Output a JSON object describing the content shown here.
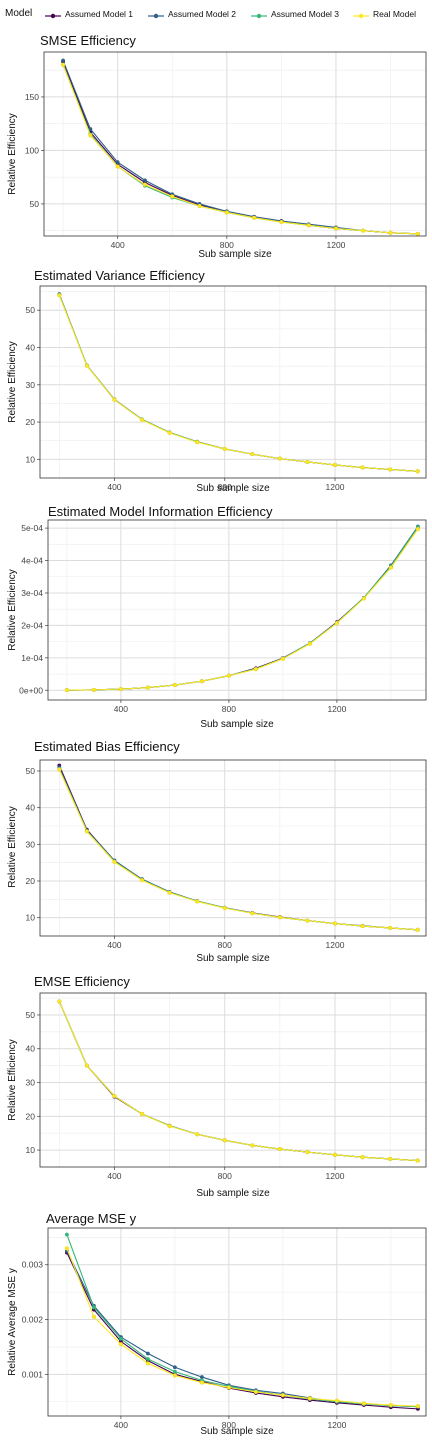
{
  "legend": {
    "title": "Model",
    "items": [
      {
        "label": "Assumed Model 1",
        "color": "#440154"
      },
      {
        "label": "Assumed Model 2",
        "color": "#2f5f8a"
      },
      {
        "label": "Assumed Model 3",
        "color": "#35b779"
      },
      {
        "label": "Real Model",
        "color": "#fde725"
      }
    ]
  },
  "chart_data": [
    {
      "type": "line",
      "title": "SMSE Efficiency",
      "xlabel": "Sub sample size",
      "ylabel": "Relative Efficiency",
      "xlim": [
        130,
        1530
      ],
      "ylim": [
        20,
        192
      ],
      "xticks": [
        400,
        800,
        1200
      ],
      "xtick_labels": [
        "400",
        "800",
        "1200"
      ],
      "yticks": [
        50,
        100,
        150
      ],
      "ytick_labels": [
        "50",
        "100",
        "150"
      ],
      "grid": true,
      "x": [
        200,
        300,
        400,
        500,
        600,
        700,
        800,
        900,
        1000,
        1100,
        1200,
        1300,
        1400,
        1500
      ],
      "series": [
        {
          "name": "Assumed Model 1",
          "values": [
            183,
            117,
            87,
            70,
            58,
            49,
            43,
            38,
            34,
            30,
            27,
            25,
            23,
            22
          ]
        },
        {
          "name": "Assumed Model 2",
          "values": [
            184,
            120,
            89,
            72,
            59,
            50,
            43,
            38,
            34,
            31,
            28,
            25,
            23,
            22
          ]
        },
        {
          "name": "Assumed Model 3",
          "values": [
            180,
            115,
            85,
            67,
            56,
            48,
            42,
            37,
            33,
            30,
            27,
            25,
            23,
            22
          ]
        },
        {
          "name": "Real Model",
          "values": [
            180,
            114,
            85,
            68,
            57,
            48,
            42,
            37,
            33,
            30,
            27,
            25,
            23,
            22
          ]
        }
      ]
    },
    {
      "type": "line",
      "title": "Estimated Variance Efficiency",
      "xlabel": "Sub sample size",
      "ylabel": "Relative Efficiency",
      "xlim": [
        130,
        1530
      ],
      "ylim": [
        5,
        56.5
      ],
      "xticks": [
        400,
        800,
        1200
      ],
      "xtick_labels": [
        "400",
        "800",
        "1200"
      ],
      "yticks": [
        10,
        20,
        30,
        40,
        50
      ],
      "ytick_labels": [
        "10",
        "20",
        "30",
        "40",
        "50"
      ],
      "grid": true,
      "x": [
        200,
        300,
        400,
        500,
        600,
        700,
        800,
        900,
        1000,
        1100,
        1200,
        1300,
        1400,
        1500
      ],
      "series": [
        {
          "name": "Assumed Model 1",
          "values": [
            54.2,
            35.2,
            26.0,
            20.7,
            17.2,
            14.7,
            12.8,
            11.4,
            10.2,
            9.3,
            8.5,
            7.8,
            7.3,
            6.8
          ]
        },
        {
          "name": "Assumed Model 2",
          "values": [
            54.3,
            35.2,
            26.1,
            20.7,
            17.2,
            14.7,
            12.8,
            11.4,
            10.2,
            9.3,
            8.5,
            7.8,
            7.3,
            6.8
          ]
        },
        {
          "name": "Assumed Model 3",
          "values": [
            54.1,
            35.2,
            26.0,
            20.7,
            17.2,
            14.7,
            12.8,
            11.4,
            10.2,
            9.3,
            8.5,
            7.8,
            7.3,
            6.8
          ]
        },
        {
          "name": "Real Model",
          "values": [
            54.0,
            35.1,
            26.0,
            20.6,
            17.1,
            14.6,
            12.8,
            11.4,
            10.2,
            9.3,
            8.5,
            7.8,
            7.3,
            6.8
          ]
        }
      ]
    },
    {
      "type": "line",
      "title": "Estimated Model Information Efficiency",
      "xlabel": "Sub sample size",
      "ylabel": "Relative Efficiency",
      "xlim": [
        130,
        1530
      ],
      "ylim": [
        -3e-05,
        0.000525
      ],
      "xticks": [
        400,
        800,
        1200
      ],
      "xtick_labels": [
        "400",
        "800",
        "1200"
      ],
      "yticks": [
        0,
        0.0001,
        0.0002,
        0.0003,
        0.0004,
        0.0005
      ],
      "ytick_labels": [
        "0e+00",
        "1e-04",
        "2e-04",
        "3e-04",
        "4e-04",
        "5e-04"
      ],
      "grid": true,
      "x": [
        200,
        300,
        400,
        500,
        600,
        700,
        800,
        900,
        1000,
        1100,
        1200,
        1300,
        1400,
        1500
      ],
      "series": [
        {
          "name": "Assumed Model 1",
          "values": [
            4e-07,
            1.2e-06,
            3.6e-06,
            8.2e-06,
            1.6e-05,
            2.8e-05,
            4.5e-05,
            6.8e-05,
            9.9e-05,
            0.000145,
            0.00021,
            0.000285,
            0.00038,
            0.0005
          ]
        },
        {
          "name": "Assumed Model 2",
          "values": [
            4e-07,
            1.2e-06,
            3.6e-06,
            8.2e-06,
            1.6e-05,
            2.8e-05,
            4.5e-05,
            6.6e-05,
            9.8e-05,
            0.000145,
            0.000208,
            0.000285,
            0.000385,
            0.000505
          ]
        },
        {
          "name": "Assumed Model 3",
          "values": [
            4e-07,
            1.2e-06,
            3.6e-06,
            8.2e-06,
            1.6e-05,
            2.8e-05,
            4.5e-05,
            6.6e-05,
            9.8e-05,
            0.000145,
            0.000208,
            0.000285,
            0.000382,
            0.000503
          ]
        },
        {
          "name": "Real Model",
          "values": [
            4e-07,
            1.2e-06,
            3.6e-06,
            8.2e-06,
            1.6e-05,
            2.8e-05,
            4.5e-05,
            6.5e-05,
            9.7e-05,
            0.000143,
            0.000207,
            0.000283,
            0.000378,
            0.000497
          ]
        }
      ]
    },
    {
      "type": "line",
      "title": "Estimated Bias Efficiency",
      "xlabel": "Sub sample size",
      "ylabel": "Relative Efficiency",
      "xlim": [
        130,
        1530
      ],
      "ylim": [
        5,
        53
      ],
      "xticks": [
        400,
        800,
        1200
      ],
      "xtick_labels": [
        "400",
        "800",
        "1200"
      ],
      "yticks": [
        10,
        20,
        30,
        40,
        50
      ],
      "ytick_labels": [
        "10",
        "20",
        "30",
        "40",
        "50"
      ],
      "grid": true,
      "x": [
        200,
        300,
        400,
        500,
        600,
        700,
        800,
        900,
        1000,
        1100,
        1200,
        1300,
        1400,
        1500
      ],
      "series": [
        {
          "name": "Assumed Model 1",
          "values": [
            51.5,
            34.0,
            25.5,
            20.4,
            17.0,
            14.5,
            12.7,
            11.3,
            10.2,
            9.2,
            8.4,
            7.7,
            7.2,
            6.7
          ]
        },
        {
          "name": "Assumed Model 2",
          "values": [
            51.0,
            33.8,
            25.6,
            20.5,
            17.0,
            14.5,
            12.7,
            11.3,
            10.1,
            9.2,
            8.4,
            7.8,
            7.2,
            6.7
          ]
        },
        {
          "name": "Assumed Model 3",
          "values": [
            50.6,
            33.6,
            25.3,
            20.3,
            16.9,
            14.5,
            12.7,
            11.2,
            10.1,
            9.2,
            8.4,
            7.7,
            7.2,
            6.7
          ]
        },
        {
          "name": "Real Model",
          "values": [
            50.4,
            33.5,
            25.2,
            20.2,
            16.8,
            14.4,
            12.6,
            11.2,
            10.1,
            9.2,
            8.4,
            7.7,
            7.2,
            6.7
          ]
        }
      ]
    },
    {
      "type": "line",
      "title": "EMSE Efficiency",
      "xlabel": "Sub sample size",
      "ylabel": "Relative Efficiency",
      "xlim": [
        130,
        1530
      ],
      "ylim": [
        5,
        56.5
      ],
      "xticks": [
        400,
        800,
        1200
      ],
      "xtick_labels": [
        "400",
        "800",
        "1200"
      ],
      "yticks": [
        10,
        20,
        30,
        40,
        50
      ],
      "ytick_labels": [
        "10",
        "20",
        "30",
        "40",
        "50"
      ],
      "grid": true,
      "x": [
        200,
        300,
        400,
        500,
        600,
        700,
        800,
        900,
        1000,
        1100,
        1200,
        1300,
        1400,
        1500
      ],
      "series": [
        {
          "name": "Assumed Model 1",
          "values": [
            54.0,
            35.0,
            25.8,
            20.7,
            17.2,
            14.7,
            12.9,
            11.4,
            10.3,
            9.4,
            8.6,
            7.9,
            7.4,
            6.9
          ]
        },
        {
          "name": "Assumed Model 2",
          "values": [
            54.0,
            35.0,
            26.0,
            20.7,
            17.2,
            14.7,
            12.9,
            11.4,
            10.3,
            9.4,
            8.6,
            7.9,
            7.4,
            6.9
          ]
        },
        {
          "name": "Assumed Model 3",
          "values": [
            54.0,
            35.0,
            26.0,
            20.7,
            17.2,
            14.7,
            12.9,
            11.4,
            10.3,
            9.4,
            8.6,
            7.9,
            7.4,
            6.9
          ]
        },
        {
          "name": "Real Model",
          "values": [
            54.0,
            35.0,
            26.0,
            20.7,
            17.1,
            14.7,
            12.9,
            11.4,
            10.3,
            9.4,
            8.6,
            7.9,
            7.4,
            6.9
          ]
        }
      ]
    },
    {
      "type": "line",
      "title": "Average MSE y",
      "xlabel": "Sub sample size",
      "ylabel": "Relative Average MSE y",
      "xlim": [
        130,
        1530
      ],
      "ylim": [
        0.00024,
        0.00367
      ],
      "xticks": [
        400,
        800,
        1200
      ],
      "xtick_labels": [
        "400",
        "800",
        "1200"
      ],
      "yticks": [
        0.001,
        0.002,
        0.003
      ],
      "ytick_labels": [
        "0.001",
        "0.002",
        "0.003"
      ],
      "grid": true,
      "x": [
        200,
        300,
        400,
        500,
        600,
        700,
        800,
        900,
        1000,
        1100,
        1200,
        1300,
        1400,
        1500
      ],
      "series": [
        {
          "name": "Assumed Model 1",
          "values": [
            0.00322,
            0.00218,
            0.0016,
            0.00125,
            0.001,
            0.00087,
            0.00075,
            0.00066,
            0.00059,
            0.00053,
            0.00048,
            0.00044,
            0.0004,
            0.00037
          ]
        },
        {
          "name": "Assumed Model 2",
          "values": [
            0.00325,
            0.00225,
            0.00168,
            0.00138,
            0.00113,
            0.00095,
            0.0008,
            0.00071,
            0.00065,
            0.00057,
            0.0005,
            0.00047,
            0.00043,
            0.00041
          ]
        },
        {
          "name": "Assumed Model 3",
          "values": [
            0.00355,
            0.00222,
            0.00165,
            0.00128,
            0.00105,
            0.00089,
            0.00078,
            0.00069,
            0.00062,
            0.00055,
            0.0005,
            0.00046,
            0.00043,
            0.00041
          ]
        },
        {
          "name": "Real Model",
          "values": [
            0.0033,
            0.00205,
            0.00155,
            0.0012,
            0.00098,
            0.00085,
            0.00076,
            0.00068,
            0.00062,
            0.00056,
            0.00052,
            0.00047,
            0.00044,
            0.00042
          ]
        }
      ]
    }
  ]
}
